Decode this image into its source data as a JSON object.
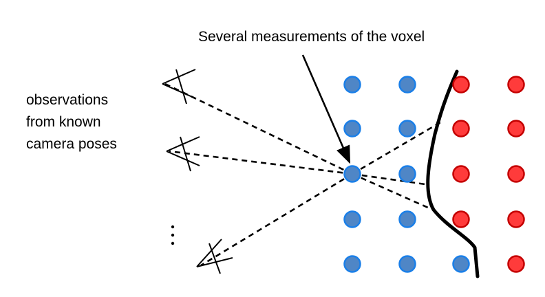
{
  "annotation": "Several measurements of the voxel",
  "side_label": [
    "observations",
    "from known",
    "camera poses"
  ],
  "colors": {
    "free_voxel_fill": "#4f86c6",
    "free_voxel_stroke": "#1a7fe8",
    "occupied_voxel_fill": "#ff3b3b",
    "occupied_voxel_stroke": "#c40000",
    "line": "#000000"
  },
  "grid": {
    "rows": 5,
    "cols": 4,
    "cells": [
      [
        "free",
        "free",
        "occupied",
        "occupied"
      ],
      [
        "free",
        "free",
        "occupied",
        "occupied"
      ],
      [
        "free",
        "free",
        "occupied",
        "occupied"
      ],
      [
        "free",
        "free",
        "occupied",
        "occupied"
      ],
      [
        "free",
        "free",
        "free",
        "occupied"
      ]
    ]
  },
  "cameras": [
    "camera-top",
    "camera-middle",
    "camera-bottom"
  ],
  "ellipsis": "vertical-dots"
}
